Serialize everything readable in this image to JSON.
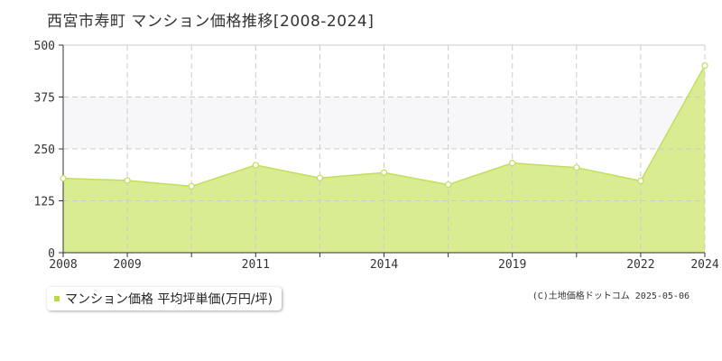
{
  "colors": {
    "area_fill": "#d9ec91",
    "line": "#c0df5c",
    "marker_fill": "#ffffff",
    "band": "#f7f7f9",
    "grid": "#cccccc",
    "axis": "#333333",
    "legend_marker": "#b7d94a"
  },
  "chart_data": {
    "type": "area",
    "title": "西宮市寿町 マンション価格推移[2008-2024]",
    "ylim": [
      0,
      500
    ],
    "yticks": [
      0,
      125,
      250,
      375,
      500
    ],
    "ytick_labels": [
      "0",
      "125",
      "250",
      "375",
      "500"
    ],
    "xlim": [
      0,
      10
    ],
    "x_labeled_ticks": [
      {
        "x": 0,
        "label": "2008"
      },
      {
        "x": 1,
        "label": "2009"
      },
      {
        "x": 3,
        "label": "2011"
      },
      {
        "x": 5,
        "label": "2014"
      },
      {
        "x": 7,
        "label": "2019"
      },
      {
        "x": 9,
        "label": "2022"
      },
      {
        "x": 10,
        "label": "2024"
      }
    ],
    "x_unlabeled_ticks": [
      2,
      4,
      6,
      8
    ],
    "grid": true,
    "series": [
      {
        "name": "マンション価格 平均坪単価(万円/坪)",
        "x": [
          0,
          1,
          2,
          3,
          4,
          5,
          6,
          7,
          8,
          9,
          10
        ],
        "values": [
          179,
          174,
          160,
          211,
          180,
          193,
          164,
          216,
          205,
          173,
          451
        ]
      }
    ]
  },
  "legend": {
    "label": "マンション価格 平均坪単価(万円/坪)",
    "placement": "bottom-left"
  },
  "copyright": "(C)土地価格ドットコム 2025-05-06"
}
